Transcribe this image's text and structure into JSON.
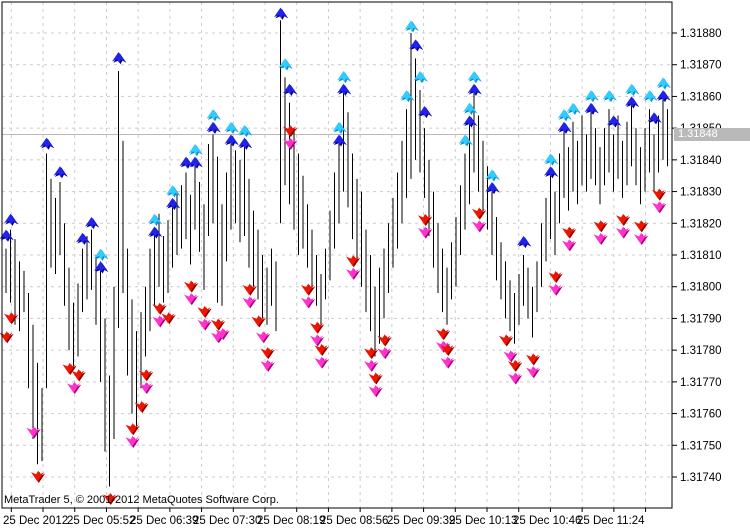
{
  "app": {
    "copyright": "MetaTrader 5, © 2001-2012 MetaQuotes Software Corp."
  },
  "chart_data": {
    "type": "ohlc-bars",
    "title": "",
    "price_axis": {
      "ticks": [
        "1.31880",
        "1.31870",
        "1.31860",
        "1.31850",
        "1.31840",
        "1.31830",
        "1.31820",
        "1.31810",
        "1.31800",
        "1.31790",
        "1.31780",
        "1.31770",
        "1.31760",
        "1.31750",
        "1.31740"
      ],
      "range": [
        1.3174,
        1.3188
      ],
      "current_price": "1.31848",
      "current_price_value": 848
    },
    "time_axis": {
      "labels": [
        "25 Dec 2012",
        "25 Dec 05:52",
        "25 Dec 06:39",
        "25 Dec 07:30",
        "25 Dec 08:19",
        "25 Dec 08:56",
        "25 Dec 09:39",
        "25 Dec 10:13",
        "25 Dec 10:46",
        "25 Dec 11:24"
      ]
    },
    "price_base": "1.31",
    "bars_note": "each bar = [high,low] in points over 1.31000, e.g. 812 = 1.31812",
    "bars": [
      [
        812,
        798
      ],
      [
        818,
        795
      ],
      [
        815,
        788
      ],
      [
        808,
        786
      ],
      [
        805,
        792
      ],
      [
        798,
        768
      ],
      [
        788,
        752
      ],
      [
        776,
        744
      ],
      [
        768,
        745
      ],
      [
        842,
        768
      ],
      [
        834,
        806
      ],
      [
        828,
        804
      ],
      [
        833,
        810
      ],
      [
        820,
        794
      ],
      [
        806,
        780
      ],
      [
        795,
        774
      ],
      [
        801,
        778
      ],
      [
        812,
        792
      ],
      [
        816,
        796
      ],
      [
        818,
        799
      ],
      [
        810,
        788
      ],
      [
        808,
        770
      ],
      [
        790,
        748
      ],
      [
        772,
        737
      ],
      [
        800,
        752
      ],
      [
        868,
        787
      ],
      [
        846,
        798
      ],
      [
        812,
        772
      ],
      [
        796,
        760
      ],
      [
        786,
        755
      ],
      [
        792,
        768
      ],
      [
        800,
        778
      ],
      [
        812,
        786
      ],
      [
        818,
        794
      ],
      [
        823,
        800
      ],
      [
        816,
        795
      ],
      [
        821,
        798
      ],
      [
        827,
        806
      ],
      [
        830,
        810
      ],
      [
        832,
        812
      ],
      [
        836,
        815
      ],
      [
        829,
        807
      ],
      [
        839,
        818
      ],
      [
        833,
        811
      ],
      [
        826,
        799
      ],
      [
        845,
        816
      ],
      [
        848,
        820
      ],
      [
        841,
        795
      ],
      [
        826,
        794
      ],
      [
        836,
        808
      ],
      [
        845,
        818
      ],
      [
        843,
        820
      ],
      [
        840,
        814
      ],
      [
        846,
        816
      ],
      [
        834,
        806
      ],
      [
        824,
        800
      ],
      [
        818,
        796
      ],
      [
        810,
        790
      ],
      [
        806,
        788
      ],
      [
        812,
        794
      ],
      [
        808,
        786
      ],
      [
        884,
        820
      ],
      [
        866,
        832
      ],
      [
        858,
        826
      ],
      [
        850,
        818
      ],
      [
        842,
        810
      ],
      [
        835,
        812
      ],
      [
        826,
        806
      ],
      [
        818,
        800
      ],
      [
        810,
        794
      ],
      [
        804,
        788
      ],
      [
        812,
        796
      ],
      [
        824,
        802
      ],
      [
        836,
        812
      ],
      [
        846,
        820
      ],
      [
        862,
        830
      ],
      [
        855,
        825
      ],
      [
        842,
        815
      ],
      [
        834,
        808
      ],
      [
        830,
        800
      ],
      [
        818,
        792
      ],
      [
        810,
        786
      ],
      [
        800,
        778
      ],
      [
        806,
        782
      ],
      [
        812,
        790
      ],
      [
        820,
        798
      ],
      [
        828,
        806
      ],
      [
        836,
        812
      ],
      [
        846,
        820
      ],
      [
        856,
        828
      ],
      [
        880,
        834
      ],
      [
        872,
        840
      ],
      [
        862,
        836
      ],
      [
        850,
        828
      ],
      [
        840,
        816
      ],
      [
        830,
        806
      ],
      [
        820,
        798
      ],
      [
        812,
        792
      ],
      [
        806,
        788
      ],
      [
        814,
        796
      ],
      [
        822,
        800
      ],
      [
        832,
        810
      ],
      [
        842,
        818
      ],
      [
        852,
        826
      ],
      [
        862,
        836
      ],
      [
        854,
        830
      ],
      [
        846,
        824
      ],
      [
        838,
        818
      ],
      [
        830,
        810
      ],
      [
        822,
        802
      ],
      [
        814,
        796
      ],
      [
        808,
        790
      ],
      [
        802,
        786
      ],
      [
        798,
        782
      ],
      [
        804,
        788
      ],
      [
        810,
        794
      ],
      [
        806,
        790
      ],
      [
        800,
        784
      ],
      [
        808,
        792
      ],
      [
        820,
        800
      ],
      [
        828,
        808
      ],
      [
        836,
        815
      ],
      [
        830,
        810
      ],
      [
        842,
        820
      ],
      [
        850,
        828
      ],
      [
        844,
        824
      ],
      [
        852,
        830
      ],
      [
        846,
        826
      ],
      [
        854,
        832
      ],
      [
        848,
        830
      ],
      [
        856,
        834
      ],
      [
        850,
        832
      ],
      [
        844,
        826
      ],
      [
        850,
        832
      ],
      [
        856,
        836
      ],
      [
        848,
        830
      ],
      [
        854,
        834
      ],
      [
        846,
        828
      ],
      [
        852,
        832
      ],
      [
        858,
        838
      ],
      [
        850,
        832
      ],
      [
        844,
        826
      ],
      [
        850,
        830
      ],
      [
        856,
        836
      ],
      [
        848,
        830
      ],
      [
        854,
        836
      ],
      [
        860,
        840
      ],
      [
        856,
        838
      ]
    ],
    "arrows_up": [
      [
        0,
        818,
        "b"
      ],
      [
        1,
        823,
        "b"
      ],
      [
        9,
        847,
        "b"
      ],
      [
        12,
        838,
        "b"
      ],
      [
        17,
        817,
        "b"
      ],
      [
        19,
        822,
        "b"
      ],
      [
        21,
        812,
        "c"
      ],
      [
        21,
        808,
        "b"
      ],
      [
        25,
        874,
        "b"
      ],
      [
        33,
        823,
        "c"
      ],
      [
        33,
        819,
        "b"
      ],
      [
        37,
        832,
        "c"
      ],
      [
        37,
        828,
        "b"
      ],
      [
        40,
        841,
        "b"
      ],
      [
        42,
        845,
        "c"
      ],
      [
        42,
        841,
        "b"
      ],
      [
        46,
        856,
        "c"
      ],
      [
        46,
        852,
        "b"
      ],
      [
        50,
        852,
        "c"
      ],
      [
        50,
        848,
        "b"
      ],
      [
        53,
        851,
        "c"
      ],
      [
        53,
        847,
        "b"
      ],
      [
        61,
        888,
        "b"
      ],
      [
        62,
        872,
        "c"
      ],
      [
        63,
        864,
        "b"
      ],
      [
        74,
        852,
        "c"
      ],
      [
        74,
        848,
        "b"
      ],
      [
        75,
        868,
        "c"
      ],
      [
        75,
        864,
        "b"
      ],
      [
        89,
        862,
        "c"
      ],
      [
        90,
        884,
        "c"
      ],
      [
        91,
        878,
        "b"
      ],
      [
        92,
        868,
        "c"
      ],
      [
        93,
        857,
        "b"
      ],
      [
        102,
        848,
        "c"
      ],
      [
        103,
        858,
        "c"
      ],
      [
        103,
        854,
        "b"
      ],
      [
        104,
        868,
        "c"
      ],
      [
        104,
        864,
        "b"
      ],
      [
        108,
        837,
        "c"
      ],
      [
        108,
        833,
        "b"
      ],
      [
        115,
        816,
        "b"
      ],
      [
        121,
        842,
        "c"
      ],
      [
        121,
        838,
        "b"
      ],
      [
        124,
        856,
        "c"
      ],
      [
        124,
        852,
        "b"
      ],
      [
        126,
        858,
        "c"
      ],
      [
        130,
        862,
        "c"
      ],
      [
        130,
        858,
        "b"
      ],
      [
        134,
        862,
        "c"
      ],
      [
        135,
        854,
        "b"
      ],
      [
        139,
        864,
        "c"
      ],
      [
        139,
        860,
        "b"
      ],
      [
        143,
        862,
        "c"
      ],
      [
        144,
        855,
        "b"
      ],
      [
        146,
        866,
        "c"
      ],
      [
        146,
        862,
        "b"
      ]
    ],
    "arrows_down": [
      [
        0,
        786,
        "r"
      ],
      [
        1,
        792,
        "r"
      ],
      [
        6,
        756,
        "m"
      ],
      [
        7,
        742,
        "r"
      ],
      [
        23,
        735,
        "r"
      ],
      [
        14,
        776,
        "r"
      ],
      [
        15,
        770,
        "m"
      ],
      [
        16,
        774,
        "r"
      ],
      [
        28,
        757,
        "r"
      ],
      [
        28,
        753,
        "m"
      ],
      [
        30,
        764,
        "r"
      ],
      [
        31,
        774,
        "r"
      ],
      [
        31,
        770,
        "m"
      ],
      [
        34,
        795,
        "r"
      ],
      [
        34,
        791,
        "m"
      ],
      [
        36,
        792,
        "r"
      ],
      [
        41,
        802,
        "r"
      ],
      [
        41,
        798,
        "m"
      ],
      [
        44,
        794,
        "r"
      ],
      [
        44,
        790,
        "m"
      ],
      [
        47,
        790,
        "r"
      ],
      [
        47,
        786,
        "m"
      ],
      [
        48,
        787,
        "m"
      ],
      [
        54,
        801,
        "r"
      ],
      [
        54,
        797,
        "m"
      ],
      [
        56,
        791,
        "r"
      ],
      [
        57,
        786,
        "m"
      ],
      [
        58,
        781,
        "r"
      ],
      [
        58,
        777,
        "m"
      ],
      [
        63,
        851,
        "r"
      ],
      [
        63,
        847,
        "m"
      ],
      [
        67,
        801,
        "r"
      ],
      [
        67,
        797,
        "m"
      ],
      [
        69,
        789,
        "r"
      ],
      [
        69,
        785,
        "m"
      ],
      [
        70,
        782,
        "r"
      ],
      [
        70,
        778,
        "m"
      ],
      [
        77,
        810,
        "r"
      ],
      [
        77,
        806,
        "m"
      ],
      [
        81,
        781,
        "r"
      ],
      [
        81,
        777,
        "m"
      ],
      [
        82,
        773,
        "r"
      ],
      [
        82,
        769,
        "m"
      ],
      [
        84,
        785,
        "r"
      ],
      [
        84,
        781,
        "m"
      ],
      [
        93,
        823,
        "r"
      ],
      [
        93,
        819,
        "m"
      ],
      [
        97,
        787,
        "r"
      ],
      [
        97,
        783,
        "m"
      ],
      [
        98,
        782,
        "r"
      ],
      [
        98,
        778,
        "m"
      ],
      [
        105,
        825,
        "r"
      ],
      [
        105,
        821,
        "m"
      ],
      [
        111,
        785,
        "r"
      ],
      [
        112,
        780,
        "m"
      ],
      [
        113,
        777,
        "r"
      ],
      [
        113,
        773,
        "m"
      ],
      [
        117,
        779,
        "r"
      ],
      [
        117,
        775,
        "m"
      ],
      [
        122,
        805,
        "r"
      ],
      [
        122,
        801,
        "m"
      ],
      [
        125,
        819,
        "r"
      ],
      [
        125,
        815,
        "m"
      ],
      [
        132,
        821,
        "r"
      ],
      [
        132,
        817,
        "m"
      ],
      [
        137,
        823,
        "r"
      ],
      [
        137,
        819,
        "m"
      ],
      [
        141,
        821,
        "r"
      ],
      [
        141,
        817,
        "m"
      ],
      [
        145,
        831,
        "r"
      ],
      [
        145,
        827,
        "m"
      ]
    ],
    "colors": {
      "bar": "#000000",
      "grid": "#cccccc",
      "border": "#000000",
      "current_price_line": "#b9b9b9",
      "current_price_box": "#b9b9b9",
      "current_price_text": "#ffffff",
      "axis_text": "#000000",
      "up_blue": "#2222ee",
      "up_blue_shadow": "#000090",
      "up_cyan": "#33ccff",
      "up_cyan_shadow": "#0090d0",
      "down_red": "#ee1400",
      "down_red_shadow": "#8e0000",
      "down_magenta": "#ff33cc",
      "down_magenta_shadow": "#aa0088"
    },
    "legend": "none",
    "grid": "dashed"
  }
}
